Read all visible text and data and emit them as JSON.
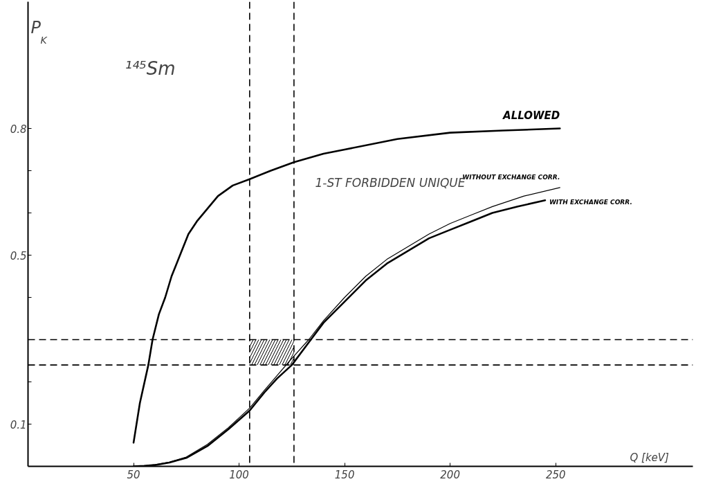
{
  "chart_data": {
    "type": "line",
    "xlabel": "Q [keV]",
    "ylabel": "P$_{K}$",
    "annotations": [
      "¹⁴⁵Sm",
      "1-ST FORBIDDEN UNIQUE"
    ],
    "xlim": [
      0,
      315
    ],
    "ylim": [
      0,
      1.1
    ],
    "xticks": [
      50,
      100,
      150,
      200,
      250
    ],
    "yticks": [
      0.1,
      {
        "value": 0.2,
        "label": null
      },
      {
        "value": 0.3,
        "label": null
      },
      {
        "value": 0.4,
        "label": null
      },
      0.5,
      {
        "value": 0.6,
        "label": null
      },
      {
        "value": 0.7,
        "label": null
      },
      0.8
    ],
    "grid": false,
    "line_style": "solid",
    "marker": "none",
    "series": [
      {
        "name": "ALLOWED",
        "color": "#000000",
        "x": [
          50,
          53,
          57,
          59,
          62,
          65,
          68,
          72,
          76,
          80,
          85,
          90,
          97,
          105,
          115,
          126,
          140,
          150,
          175,
          200,
          225,
          252
        ],
        "values": [
          0.056,
          0.15,
          0.24,
          0.3,
          0.36,
          0.4,
          0.45,
          0.5,
          0.55,
          0.58,
          0.61,
          0.64,
          0.665,
          0.68,
          0.7,
          0.72,
          0.74,
          0.75,
          0.775,
          0.79,
          0.795,
          0.8
        ]
      },
      {
        "name": "WITHOUT EXCHANGE CORR.",
        "color": "#000000",
        "x": [
          50,
          55,
          60,
          67,
          75,
          85,
          95,
          105,
          112,
          118,
          124,
          133,
          140,
          150,
          160,
          170,
          180,
          190,
          200,
          210,
          220,
          235,
          252
        ],
        "values": [
          0,
          0.001,
          0.004,
          0.01,
          0.022,
          0.052,
          0.092,
          0.138,
          0.18,
          0.215,
          0.25,
          0.3,
          0.345,
          0.4,
          0.45,
          0.49,
          0.52,
          0.55,
          0.575,
          0.595,
          0.615,
          0.64,
          0.66
        ]
      },
      {
        "name": "WITH EXCHANGE CORR.",
        "color": "#000000",
        "x": [
          50,
          55,
          60,
          67,
          75,
          85,
          95,
          105,
          112,
          118,
          125,
          134,
          140,
          150,
          160,
          170,
          180,
          190,
          200,
          210,
          220,
          232,
          245
        ],
        "values": [
          0,
          0.001,
          0.003,
          0.009,
          0.02,
          0.048,
          0.088,
          0.132,
          0.175,
          0.208,
          0.24,
          0.3,
          0.34,
          0.39,
          0.44,
          0.48,
          0.51,
          0.54,
          0.56,
          0.58,
          0.6,
          0.615,
          0.63
        ]
      }
    ],
    "ref_lines": [
      {
        "axis": "x",
        "value": 105,
        "color": "#000000",
        "line_style": "dashed"
      },
      {
        "axis": "x",
        "value": 126,
        "color": "#000000",
        "line_style": "dashed"
      },
      {
        "axis": "y",
        "value": 0.3,
        "color": "#000000",
        "line_style": "dashed"
      },
      {
        "axis": "y",
        "value": 0.24,
        "color": "#000000",
        "line_style": "dashed"
      }
    ],
    "bands": [
      {
        "axis": "x",
        "from": 105,
        "to": 126,
        "color": "#000000"
      }
    ]
  }
}
